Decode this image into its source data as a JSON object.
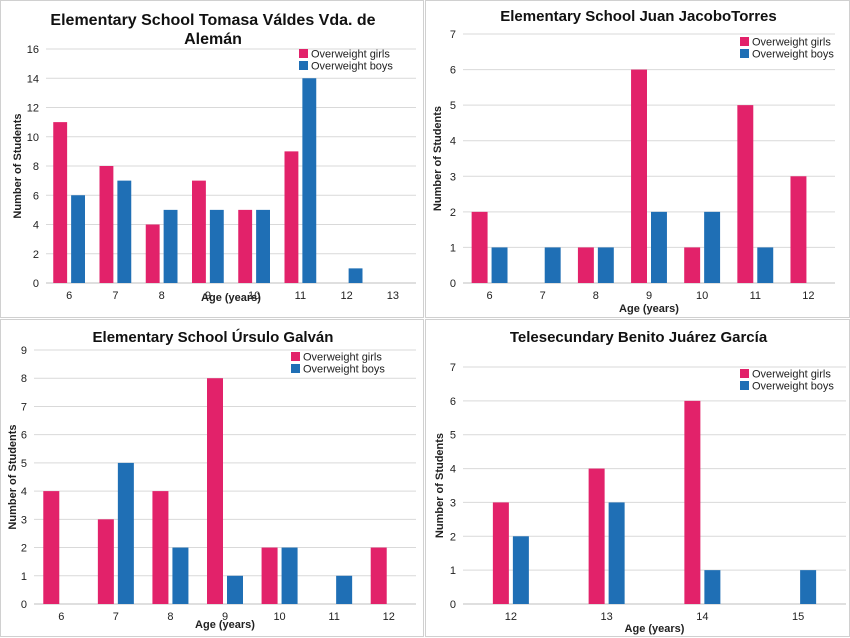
{
  "colors": {
    "girls": "#E2226A",
    "boys": "#1F6FB5",
    "grid": "#d9d9d9",
    "axis": "#bfbfbf"
  },
  "chart_data": [
    {
      "type": "bar",
      "title_lines": [
        "Elementary School Tomasa Váldes Vda. de",
        "Alemán"
      ],
      "xlabel": "Age (years)",
      "ylabel": "Number of Students",
      "categories": [
        "6",
        "7",
        "8",
        "9",
        "10",
        "11",
        "12",
        "13"
      ],
      "ylim": [
        0,
        16
      ],
      "yticks": [
        0,
        2,
        4,
        6,
        8,
        10,
        12,
        14,
        16
      ],
      "grid": true,
      "legend": "top-right",
      "series": [
        {
          "name": "Overweight girls",
          "values": [
            11,
            8,
            4,
            7,
            5,
            9,
            0,
            0
          ]
        },
        {
          "name": "Overweight boys",
          "values": [
            6,
            7,
            5,
            5,
            5,
            14,
            1,
            0
          ]
        }
      ]
    },
    {
      "type": "bar",
      "title_lines": [
        "Elementary School Juan JacoboTorres"
      ],
      "xlabel": "Age (years)",
      "ylabel": "Number of Students",
      "categories": [
        "6",
        "7",
        "8",
        "9",
        "10",
        "11",
        "12"
      ],
      "ylim": [
        0,
        7
      ],
      "yticks": [
        0,
        1,
        2,
        3,
        4,
        5,
        6,
        7
      ],
      "grid": true,
      "legend": "top-right",
      "series": [
        {
          "name": "Overweight girls",
          "values": [
            2,
            0,
            1,
            6,
            1,
            5,
            3
          ]
        },
        {
          "name": "Overweight boys",
          "values": [
            1,
            1,
            1,
            2,
            2,
            1,
            0
          ]
        }
      ]
    },
    {
      "type": "bar",
      "title_lines": [
        "Elementary School Úrsulo Galván"
      ],
      "xlabel": "Age (years)",
      "ylabel": "Number of Students",
      "categories": [
        "6",
        "7",
        "8",
        "9",
        "10",
        "11",
        "12"
      ],
      "ylim": [
        0,
        9
      ],
      "yticks": [
        0,
        1,
        2,
        3,
        4,
        5,
        6,
        7,
        8,
        9
      ],
      "grid": true,
      "legend": "top-right",
      "series": [
        {
          "name": "Overweight girls",
          "values": [
            4,
            3,
            4,
            8,
            2,
            0,
            2
          ]
        },
        {
          "name": "Overweight boys",
          "values": [
            0,
            5,
            2,
            1,
            2,
            1,
            0
          ]
        }
      ]
    },
    {
      "type": "bar",
      "title_lines": [
        "Telesecundary Benito Juárez García"
      ],
      "xlabel": "Age (years)",
      "ylabel": "Number of Students",
      "categories": [
        "12",
        "13",
        "14",
        "15"
      ],
      "ylim": [
        0,
        7
      ],
      "yticks": [
        0,
        1,
        2,
        3,
        4,
        5,
        6,
        7
      ],
      "grid": true,
      "legend": "top-right",
      "series": [
        {
          "name": "Overweight girls",
          "values": [
            3,
            4,
            6,
            0
          ]
        },
        {
          "name": "Overweight boys",
          "values": [
            2,
            3,
            1,
            1
          ]
        }
      ]
    }
  ]
}
